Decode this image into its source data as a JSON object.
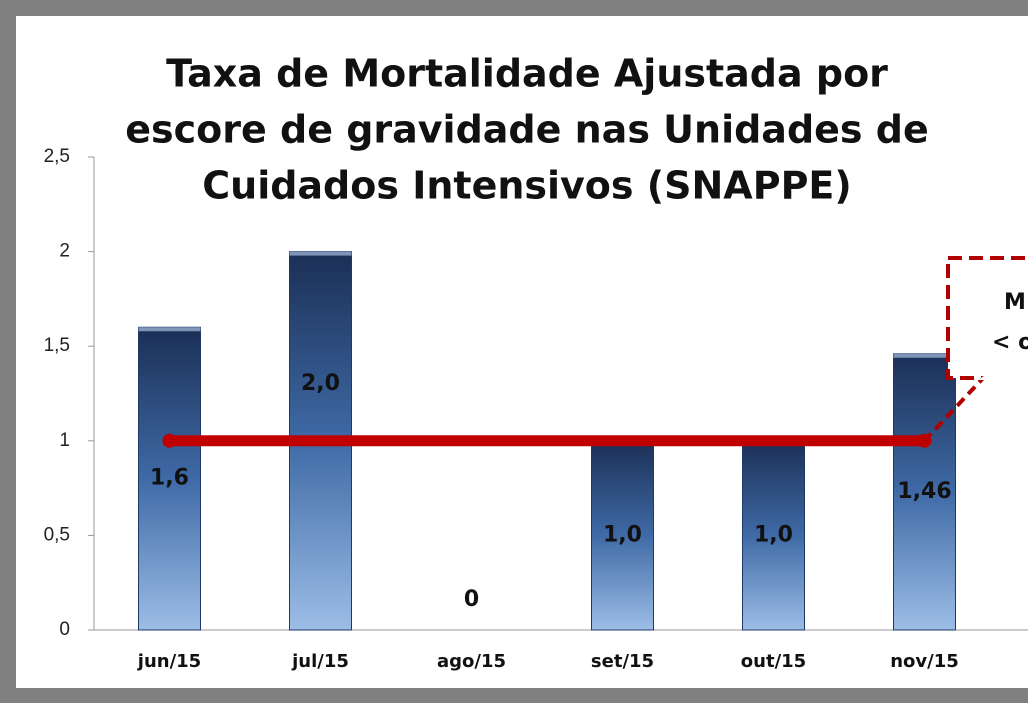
{
  "chart_data": {
    "type": "bar",
    "title": [
      "Taxa de Mortalidade Ajustada por",
      "escore de gravidade nas Unidades de",
      "Cuidados Intensivos (SNAPPE)"
    ],
    "categories": [
      "jun/15",
      "jul/15",
      "ago/15",
      "set/15",
      "out/15",
      "nov/15"
    ],
    "values": [
      1.6,
      2.0,
      0,
      1.0,
      1.0,
      1.46
    ],
    "value_labels": [
      "1,6",
      "2,0",
      "0",
      "1,0",
      "1,0",
      "1,46"
    ],
    "color": "#1f3a66",
    "line_series": {
      "color": "#c00000",
      "values": [
        1,
        1,
        1,
        1,
        1,
        1
      ]
    },
    "annotations": [
      "M",
      "< o"
    ],
    "ylim": [
      0,
      2.5
    ],
    "yticks": [
      0,
      {
        "value": 0.5,
        "label": "0,5"
      },
      1,
      {
        "value": 1.5,
        "label": "1,5"
      },
      2,
      {
        "value": 2.5,
        "label": "2,5"
      }
    ]
  }
}
